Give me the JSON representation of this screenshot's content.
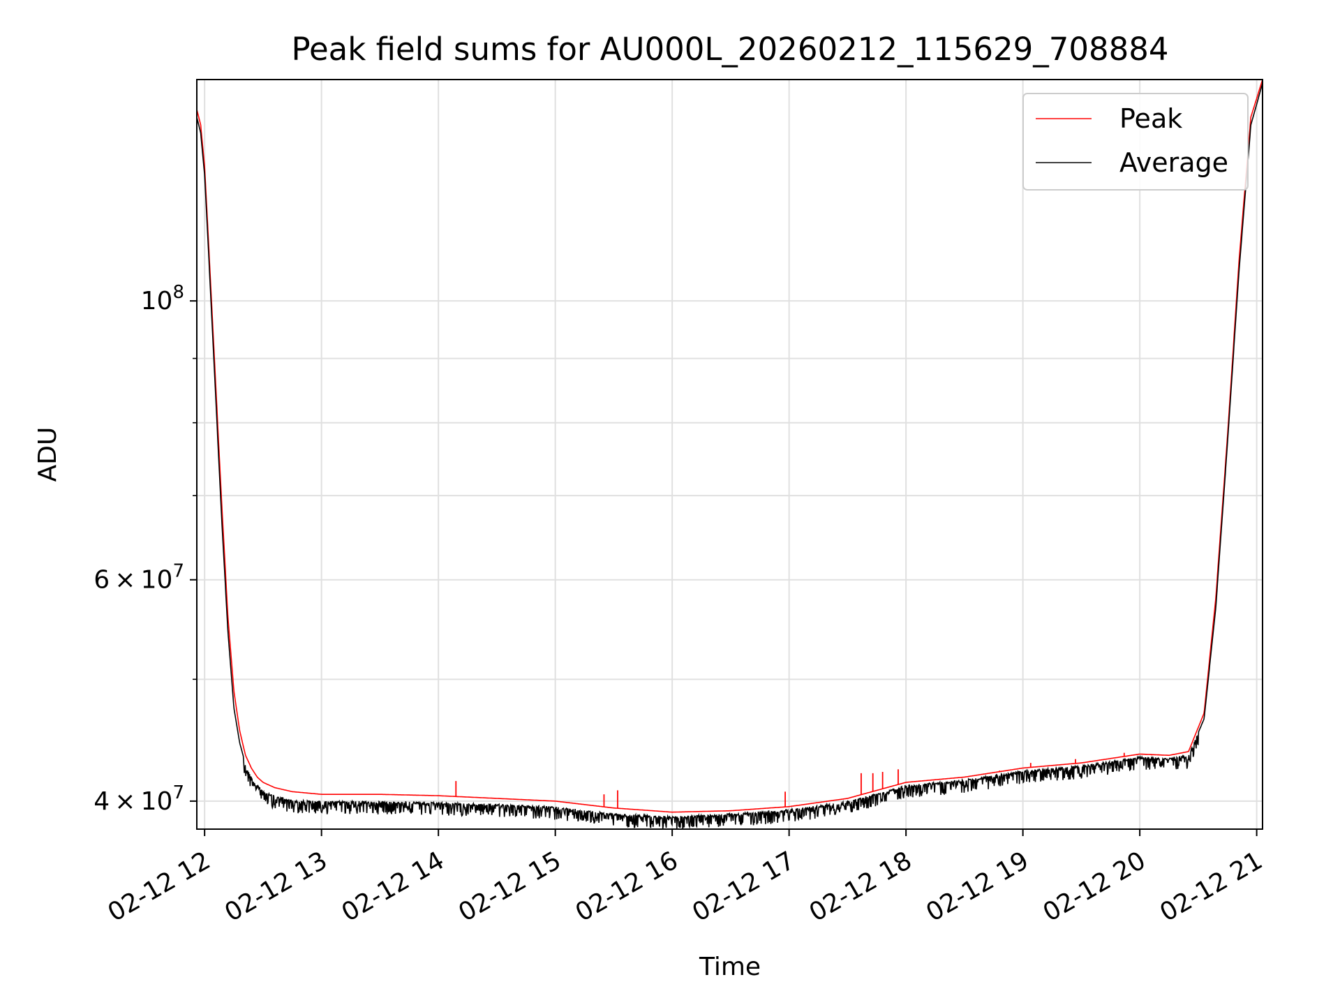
{
  "chart_data": {
    "type": "line",
    "title": "Peak field sums for AU000L_20260212_115629_708884",
    "xlabel": "Time",
    "ylabel": "ADU",
    "y_scale": "log",
    "grid": true,
    "legend_position": "top-right",
    "xlim": [
      "2026-02-12 11:56",
      "2026-02-12 21:03"
    ],
    "ylim": [
      38000000,
      150000000
    ],
    "x_ticks": [
      "02-12 12",
      "02-12 13",
      "02-12 14",
      "02-12 15",
      "02-12 16",
      "02-12 17",
      "02-12 18",
      "02-12 19",
      "02-12 20",
      "02-12 21"
    ],
    "x_tick_values": [
      "2026-02-12 12:00",
      "2026-02-12 13:00",
      "2026-02-12 14:00",
      "2026-02-12 15:00",
      "2026-02-12 16:00",
      "2026-02-12 17:00",
      "2026-02-12 18:00",
      "2026-02-12 19:00",
      "2026-02-12 20:00",
      "2026-02-12 21:00"
    ],
    "y_major_ticks": [
      {
        "value": 40000000,
        "mantissa": "4",
        "exponent": "7"
      },
      {
        "value": 60000000,
        "mantissa": "6",
        "exponent": "7"
      },
      {
        "value": 100000000,
        "mantissa": "",
        "exponent": "8"
      }
    ],
    "y_minor_ticks": [
      50000000,
      70000000,
      80000000,
      90000000
    ],
    "colors": {
      "peak": "#ff0000",
      "average": "#000000",
      "grid": "#e0e0e0"
    },
    "series": [
      {
        "name": "Peak",
        "color": "#ff0000",
        "x": [
          "2026-02-12 11:56",
          "2026-02-12 11:58",
          "2026-02-12 12:00",
          "2026-02-12 12:03",
          "2026-02-12 12:06",
          "2026-02-12 12:09",
          "2026-02-12 12:12",
          "2026-02-12 12:15",
          "2026-02-12 12:18",
          "2026-02-12 12:21",
          "2026-02-12 12:24",
          "2026-02-12 12:27",
          "2026-02-12 12:30",
          "2026-02-12 12:36",
          "2026-02-12 12:45",
          "2026-02-12 13:00",
          "2026-02-12 13:30",
          "2026-02-12 14:00",
          "2026-02-12 14:30",
          "2026-02-12 15:00",
          "2026-02-12 15:30",
          "2026-02-12 16:00",
          "2026-02-12 16:30",
          "2026-02-12 17:00",
          "2026-02-12 17:30",
          "2026-02-12 18:00",
          "2026-02-12 18:30",
          "2026-02-12 19:00",
          "2026-02-12 19:30",
          "2026-02-12 20:00",
          "2026-02-12 20:15",
          "2026-02-12 20:25",
          "2026-02-12 20:33",
          "2026-02-12 20:39",
          "2026-02-12 20:45",
          "2026-02-12 20:51",
          "2026-02-12 20:57",
          "2026-02-12 21:03"
        ],
        "y": [
          142000000,
          138000000,
          128000000,
          104000000,
          84000000,
          68000000,
          56000000,
          49000000,
          45500000,
          43500000,
          42500000,
          41800000,
          41400000,
          41000000,
          40700000,
          40500000,
          40500000,
          40400000,
          40200000,
          40000000,
          39500000,
          39200000,
          39300000,
          39600000,
          40200000,
          41400000,
          41800000,
          42500000,
          42900000,
          43600000,
          43500000,
          43800000,
          47000000,
          58000000,
          78000000,
          108000000,
          140000000,
          150000000
        ]
      },
      {
        "name": "Average",
        "color": "#000000",
        "x": [
          "2026-02-12 11:56",
          "2026-02-12 11:58",
          "2026-02-12 12:00",
          "2026-02-12 12:03",
          "2026-02-12 12:06",
          "2026-02-12 12:09",
          "2026-02-12 12:12",
          "2026-02-12 12:15",
          "2026-02-12 12:18",
          "2026-02-12 12:21",
          "2026-02-12 12:24",
          "2026-02-12 12:27",
          "2026-02-12 12:30",
          "2026-02-12 12:36",
          "2026-02-12 12:45",
          "2026-02-12 13:00",
          "2026-02-12 13:30",
          "2026-02-12 14:00",
          "2026-02-12 14:30",
          "2026-02-12 15:00",
          "2026-02-12 15:30",
          "2026-02-12 16:00",
          "2026-02-12 16:30",
          "2026-02-12 17:00",
          "2026-02-12 17:30",
          "2026-02-12 18:00",
          "2026-02-12 18:30",
          "2026-02-12 19:00",
          "2026-02-12 19:30",
          "2026-02-12 20:00",
          "2026-02-12 20:15",
          "2026-02-12 20:25",
          "2026-02-12 20:33",
          "2026-02-12 20:39",
          "2026-02-12 20:45",
          "2026-02-12 20:51",
          "2026-02-12 20:57",
          "2026-02-12 21:03"
        ],
        "y": [
          140000000,
          136000000,
          126000000,
          102000000,
          82000000,
          66000000,
          54500000,
          47500000,
          44500000,
          42800000,
          41800000,
          41200000,
          40800000,
          40400000,
          40100000,
          40000000,
          40000000,
          39900000,
          39800000,
          39600000,
          39100000,
          38900000,
          39100000,
          39400000,
          40000000,
          41200000,
          41600000,
          42300000,
          42700000,
          43400000,
          43300000,
          43500000,
          46500000,
          57000000,
          77000000,
          106000000,
          138000000,
          149000000
        ]
      }
    ],
    "spikes": {
      "Peak": [
        {
          "x": "2026-02-12 14:09",
          "y": 41500000
        },
        {
          "x": "2026-02-12 15:25",
          "y": 40500000
        },
        {
          "x": "2026-02-12 15:32",
          "y": 40800000
        },
        {
          "x": "2026-02-12 16:58",
          "y": 40700000
        },
        {
          "x": "2026-02-12 17:37",
          "y": 42100000
        },
        {
          "x": "2026-02-12 17:43",
          "y": 42100000
        },
        {
          "x": "2026-02-12 17:48",
          "y": 42200000
        },
        {
          "x": "2026-02-12 17:56",
          "y": 42400000
        },
        {
          "x": "2026-02-12 18:48",
          "y": 42300000
        },
        {
          "x": "2026-02-12 19:04",
          "y": 42900000
        },
        {
          "x": "2026-02-12 19:27",
          "y": 43200000
        },
        {
          "x": "2026-02-12 19:52",
          "y": 43700000
        },
        {
          "x": "2026-02-12 20:06",
          "y": 43500000
        },
        {
          "x": "2026-02-12 20:10",
          "y": 43500000
        },
        {
          "x": "2026-02-12 20:16",
          "y": 43500000
        }
      ]
    }
  }
}
